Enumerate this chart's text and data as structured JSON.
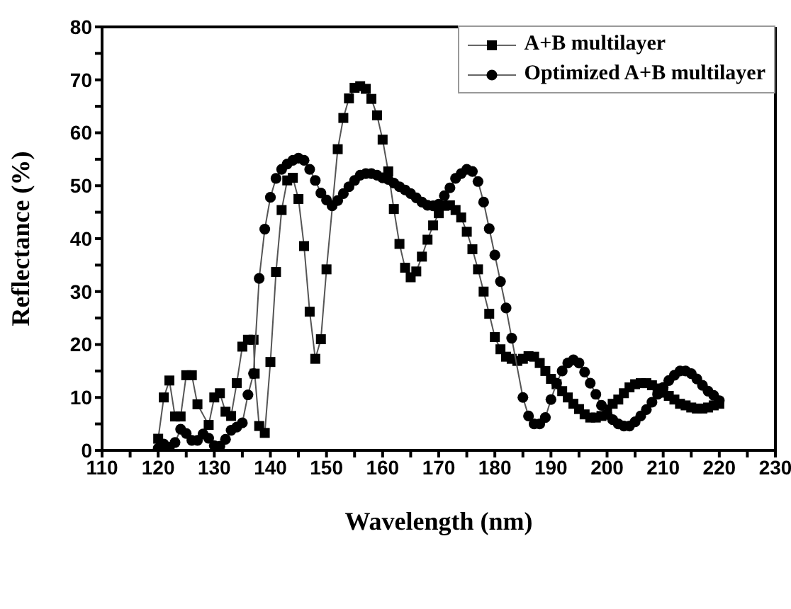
{
  "chart_data": {
    "type": "line",
    "xlabel": "Wavelength (nm)",
    "ylabel": "Reflectance (%)",
    "xlim": [
      110,
      230
    ],
    "xticks": [
      110,
      {
        "value": 115,
        "label": null
      },
      120,
      {
        "value": 125,
        "label": null
      },
      130,
      {
        "value": 135,
        "label": null
      },
      140,
      {
        "value": 145,
        "label": null
      },
      150,
      {
        "value": 155,
        "label": null
      },
      160,
      {
        "value": 165,
        "label": null
      },
      170,
      {
        "value": 175,
        "label": null
      },
      180,
      {
        "value": 185,
        "label": null
      },
      190,
      {
        "value": 195,
        "label": null
      },
      200,
      {
        "value": 205,
        "label": null
      },
      210,
      {
        "value": 215,
        "label": null
      },
      220,
      {
        "value": 225,
        "label": null
      },
      230
    ],
    "ylim": [
      0,
      80
    ],
    "yticks": [
      0,
      {
        "value": 5,
        "label": null
      },
      10,
      {
        "value": 15,
        "label": null
      },
      20,
      {
        "value": 25,
        "label": null
      },
      30,
      {
        "value": 35,
        "label": null
      },
      40,
      {
        "value": 45,
        "label": null
      },
      50,
      {
        "value": 55,
        "label": null
      },
      60,
      {
        "value": 65,
        "label": null
      },
      70,
      {
        "value": 75,
        "label": null
      },
      80
    ],
    "legend": "top right",
    "line_style": "solid",
    "series": [
      {
        "name": "A+B multilayer",
        "color": "#000000",
        "marker": "square",
        "x": [
          120,
          121,
          122,
          123,
          124,
          125,
          126,
          127,
          129,
          130,
          131,
          132,
          133,
          134,
          135,
          136,
          137,
          137.2,
          138,
          139,
          140,
          141,
          142,
          143,
          144,
          145,
          146,
          147,
          148,
          149,
          150,
          152,
          153,
          154,
          155,
          156,
          157,
          158,
          159,
          160,
          161,
          162,
          163,
          164,
          165,
          166,
          167,
          168,
          169,
          170,
          171,
          172,
          173,
          174,
          175,
          176,
          177,
          178,
          179,
          180,
          181,
          182,
          183,
          184,
          185,
          186,
          187,
          188,
          189,
          190,
          191,
          192,
          193,
          194,
          195,
          196,
          197,
          198,
          199,
          200,
          201,
          202,
          203,
          204,
          205,
          206,
          207,
          208,
          209,
          210,
          211,
          212,
          213,
          214,
          215,
          216,
          217,
          218,
          219,
          220
        ],
        "values": [
          2.2,
          10,
          13.2,
          6.4,
          6.4,
          14.2,
          14.2,
          8.7,
          4.8,
          10,
          10.8,
          7.3,
          6.5,
          12.7,
          19.6,
          20.9,
          20.9,
          14.5,
          4.6,
          3.3,
          16.7,
          33.7,
          45.4,
          51,
          51.5,
          47.5,
          38.6,
          26.2,
          17.3,
          21,
          34.2,
          56.9,
          62.8,
          66.5,
          68.5,
          68.8,
          68.3,
          66.4,
          63.3,
          58.7,
          52.7,
          45.6,
          39,
          34.5,
          32.7,
          33.8,
          36.6,
          39.8,
          42.5,
          44.8,
          46.2,
          46.3,
          45.4,
          44,
          41.3,
          38,
          34.2,
          30,
          25.8,
          21.4,
          19.1,
          17.7,
          17.3,
          16.9,
          17.3,
          17.8,
          17.7,
          16.5,
          15,
          13.5,
          12.5,
          11.2,
          10,
          8.8,
          7.8,
          6.8,
          6.2,
          6.2,
          6.5,
          7.7,
          8.8,
          9.6,
          10.8,
          11.9,
          12.5,
          12.7,
          12.7,
          12.3,
          11.7,
          10.9,
          10.3,
          9.6,
          8.8,
          8.5,
          8.1,
          7.9,
          7.9,
          8.1,
          8.5,
          8.8
        ]
      },
      {
        "name": "Optimized A+B multilayer",
        "color": "#000000",
        "marker": "circle",
        "x": [
          120,
          121,
          122,
          123,
          124,
          125,
          126,
          127,
          128,
          129,
          130,
          131,
          132,
          133,
          134,
          135,
          136,
          137,
          138,
          139,
          140,
          141,
          142,
          143,
          144,
          145,
          146,
          147,
          148,
          149,
          150,
          151,
          152,
          153,
          154,
          155,
          156,
          157,
          158,
          159,
          160,
          161,
          162,
          163,
          164,
          165,
          166,
          167,
          168,
          169,
          170,
          171,
          172,
          173,
          174,
          175,
          176,
          177,
          178,
          179,
          180,
          181,
          182,
          183,
          185,
          186,
          187,
          188,
          189,
          190,
          191,
          192,
          193,
          194,
          195,
          196,
          197,
          198,
          199,
          200,
          201,
          202,
          203,
          204,
          205,
          206,
          207,
          208,
          209,
          210,
          211,
          212,
          213,
          214,
          215,
          216,
          217,
          218,
          219,
          220
        ],
        "values": [
          0.4,
          1.2,
          0.6,
          1.5,
          4,
          3.2,
          1.9,
          1.9,
          3.1,
          2.3,
          0.9,
          0.8,
          2.1,
          3.8,
          4.4,
          5.2,
          10.5,
          14.5,
          32.5,
          41.8,
          47.8,
          51.4,
          53.1,
          54.1,
          54.8,
          55.2,
          54.8,
          53.1,
          51,
          48.6,
          47.3,
          46.2,
          47.2,
          48.5,
          49.8,
          51,
          52,
          52.3,
          52.3,
          52,
          51.5,
          51.2,
          50.5,
          49.8,
          49.2,
          48.5,
          47.7,
          46.9,
          46.3,
          46.2,
          46.5,
          48.1,
          49.6,
          51.4,
          52.3,
          53.1,
          52.7,
          50.8,
          46.9,
          41.9,
          36.9,
          31.9,
          26.9,
          21.2,
          10,
          6.5,
          5,
          5,
          6.2,
          9.6,
          12.7,
          15,
          16.5,
          17.1,
          16.5,
          14.8,
          12.7,
          10.6,
          8.5,
          6.8,
          5.8,
          5,
          4.6,
          4.6,
          5.4,
          6.5,
          7.7,
          9.1,
          10.6,
          11.9,
          13.2,
          14.2,
          15,
          15,
          14.5,
          13.5,
          12.3,
          11.2,
          10.4,
          9.4
        ]
      }
    ]
  }
}
